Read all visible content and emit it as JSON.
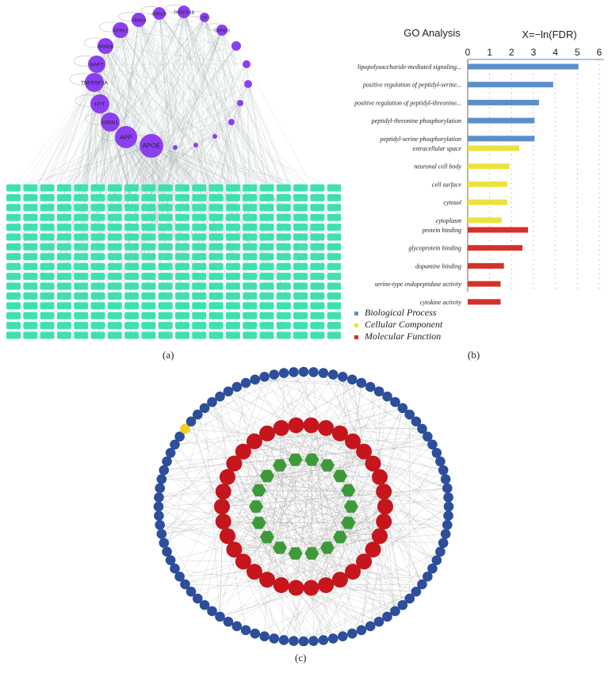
{
  "panel_a": {
    "caption": "(a)",
    "hub_nodes": [
      "GRIN2D",
      "TNFRSF1B",
      "CP",
      "CAPN10",
      "GRIN2A",
      "NTRK1",
      "GRIN2B",
      "MAPT",
      "TNFRSF1A",
      "HTT",
      "GRIN1",
      "APP",
      "APOE"
    ],
    "node_color": "#8b3ff0",
    "target_color": "#3fe0b0"
  },
  "panel_b": {
    "caption": "(b)",
    "chart_data": {
      "type": "bar",
      "orientation": "horizontal",
      "title": "GO Analysis",
      "xlabel": "X=−ln(FDR)",
      "xlim": [
        0,
        6
      ],
      "xticks": [
        0,
        1,
        2,
        3,
        4,
        5,
        6
      ],
      "groups": [
        {
          "name": "Biological Process",
          "color": "#5b8fc9",
          "categories": [
            "lipopolysaccharide-mediated signaling...",
            "positive regulation of peptidyl-serine...",
            "positive regulation of peptidyl-threonine...",
            "peptidyl-threonine phosphorylation",
            "peptidyl-serine phosphorylation"
          ],
          "values": [
            5.05,
            3.9,
            3.25,
            3.05,
            3.05
          ]
        },
        {
          "name": "Cellular Component",
          "color": "#ece23e",
          "categories": [
            "extracellular space",
            "neuronal cell body",
            "cell surface",
            "cytosol",
            "cytoplasm"
          ],
          "values": [
            2.35,
            1.9,
            1.8,
            1.8,
            1.55
          ]
        },
        {
          "name": "Molecular Function",
          "color": "#d6302a",
          "categories": [
            "protein binding",
            "glycoprotein binding",
            "dopamine binding",
            "serine-type endopeptidase activity",
            "cytokine activity"
          ],
          "values": [
            2.75,
            2.5,
            1.65,
            1.5,
            1.5
          ]
        }
      ],
      "legend": [
        "Biological Process",
        "Cellular Component",
        "Molecular Function"
      ],
      "legend_position": "bottom-left",
      "grid": "vertical-dotted"
    }
  },
  "panel_c": {
    "caption": "(c)",
    "outer_color": "#2d4e9a",
    "middle_color": "#c4161c",
    "inner_color": "#3d9a3a",
    "highlight_color": "#f0d020"
  }
}
